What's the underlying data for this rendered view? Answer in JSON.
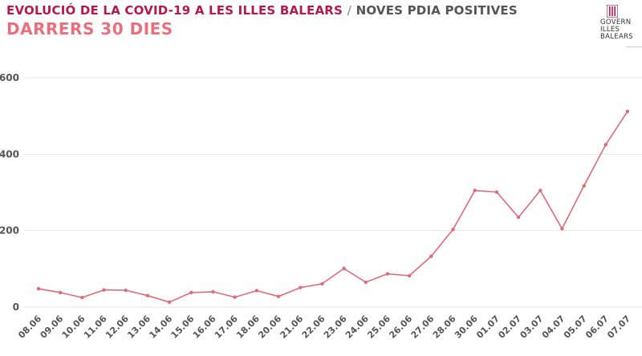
{
  "header": {
    "title_main": "EVOLUCIÓ DE LA COVID-19 A LES ILLES BALEARS",
    "title_sep": "/",
    "title_sub": "NOVES PDIA POSITIVES",
    "subtitle": "DARRERS 30 DIES"
  },
  "logo": {
    "lines": [
      "GOVERN",
      "ILLES",
      "BALEARS"
    ]
  },
  "colors": {
    "title": "#b5184a",
    "subtitle": "#e8707e",
    "line": "#e06a7a",
    "grid": "#e6e6e6",
    "ticks": "#555555"
  },
  "chart_data": {
    "type": "line",
    "title": "",
    "xlabel": "",
    "ylabel": "",
    "ylim": [
      0,
      600
    ],
    "yticks": [
      0,
      200,
      400,
      600
    ],
    "ytick_labels": [
      "0",
      "200",
      "400",
      "600"
    ],
    "grid": "horizontal",
    "categories": [
      "08.06",
      "09.06",
      "10.06",
      "11.06",
      "12.06",
      "13.06",
      "14.06",
      "15.06",
      "16.06",
      "17.06",
      "18.06",
      "20.06",
      "21.06",
      "22.06",
      "23.06",
      "24.06",
      "25.06",
      "26.06",
      "27.06",
      "28.06",
      "30.06",
      "01.07",
      "02.07",
      "03.07",
      "04.07",
      "05.07",
      "06.07",
      "07.07"
    ],
    "series": [
      {
        "values": [
          48,
          38,
          25,
          45,
          44,
          30,
          13,
          38,
          40,
          26,
          43,
          28,
          51,
          61,
          101,
          65,
          87,
          82,
          133,
          203,
          305,
          301,
          235,
          305,
          205,
          317,
          425,
          512
        ]
      }
    ]
  }
}
